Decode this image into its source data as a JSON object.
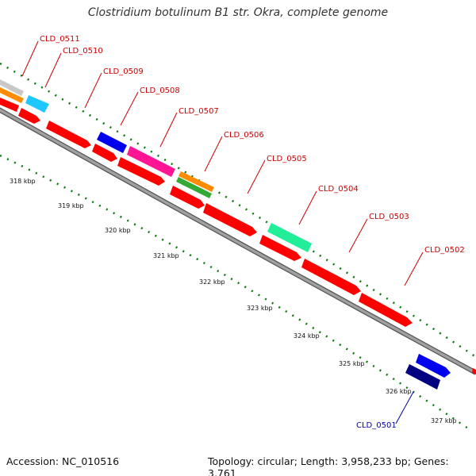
{
  "title": "Clostridium botulinum B1 str. Okra, complete genome",
  "accession": "Accession: NC_010516",
  "summary": "Topology: circular; Length: 3,958,233 bp; Genes: 3,761",
  "colors": {
    "backbone": "#8f8f8f",
    "tick": "#0a7a0a",
    "label_red": "#cc0000",
    "label_blue": "#0000aa",
    "cds": "#ff0000",
    "blue": "#0000ee",
    "navy": "#000080",
    "magenta": "#ff1493",
    "orange": "#ff8c00",
    "green": "#33aa33",
    "mint": "#22ee99",
    "cyan": "#1ec8ff",
    "grey": "#c8c8c8"
  },
  "kbp_ticks": [
    "318 kbp",
    "319 kbp",
    "320 kbp",
    "321 kbp",
    "322 kbp",
    "323 kbp",
    "324 kbp",
    "325 kbp",
    "326 kbp",
    "327 kbp"
  ],
  "gene_labels": [
    "CLD_0511",
    "CLD_0510",
    "CLD_0509",
    "CLD_0508",
    "CLD_0507",
    "CLD_0506",
    "CLD_0505",
    "CLD_0504",
    "CLD_0503",
    "CLD_0502",
    "CLD_0501"
  ]
}
